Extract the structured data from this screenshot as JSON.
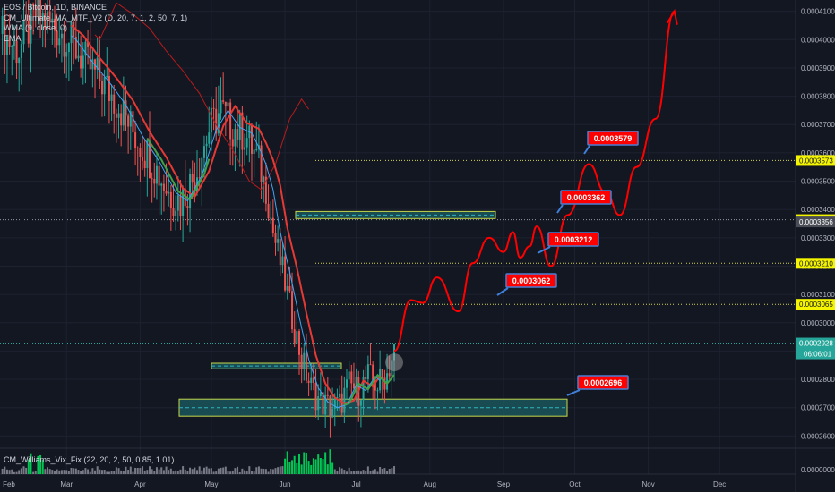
{
  "legend": {
    "title": "EOS / Bitcoin, 1D, BINANCE",
    "ind1": "CM_Ultimate_MA_MTF_V2 (D, 20, 7, 1, 2, 50, 7, 1)",
    "ind2": "WMA (9, close, 0)",
    "ind3": "EMA"
  },
  "oscillator": {
    "label": "CM_Williams_Vix_Fix (22, 20, 2, 50, 0.85, 1.01)"
  },
  "colors": {
    "background": "#131722",
    "up": "#26a69a",
    "down": "#ef5350",
    "projection": "#ff0000",
    "zone": "#1b5e63",
    "zone_line": "#c6d84a",
    "dotted": "#d4d44a",
    "current_price": "#26a69a",
    "badge": "#ff0000"
  },
  "chart_data": {
    "type": "candlestick",
    "title": "EOS / Bitcoin, 1D, BINANCE",
    "x_ticks": [
      "Feb",
      "Mar",
      "Apr",
      "May",
      "Jun",
      "Jul",
      "Aug",
      "Sep",
      "Oct",
      "Nov",
      "Dec"
    ],
    "y_ticks": [
      "0.0004100",
      "0.0004000",
      "0.0003900",
      "0.0003800",
      "0.0003700",
      "0.0003600",
      "0.0003500",
      "0.0003400",
      "0.0003300",
      "0.0003200",
      "0.0003100",
      "0.0003000",
      "0.0002900",
      "0.0002800",
      "0.0002700",
      "0.0002600"
    ],
    "ylim": [
      0.000256,
      0.000414
    ],
    "oscillator_tick": "0.0000000",
    "current_price": {
      "value": 0.0002928,
      "label": "0.0002928",
      "countdown": "06:06:01"
    },
    "axis_markers": [
      {
        "value": 0.0003573,
        "label": "0.0003573"
      },
      {
        "value": 0.0003364,
        "label": "0.0003364"
      },
      {
        "value": 0.0003356,
        "label": "0.0003356"
      },
      {
        "value": 0.000321,
        "label": "0.0003210"
      },
      {
        "value": 0.0003065,
        "label": "0.0003065"
      }
    ],
    "targets": [
      {
        "value": 0.0003579,
        "label": "0.0003579"
      },
      {
        "value": 0.0003362,
        "label": "0.0003362"
      },
      {
        "value": 0.0003212,
        "label": "0.0003212"
      },
      {
        "value": 0.0003062,
        "label": "0.0003062"
      },
      {
        "value": 0.0002696,
        "label": "0.0002696"
      }
    ],
    "zones": [
      {
        "low": 0.000267,
        "high": 0.000273
      },
      {
        "low": 0.0002837,
        "high": 0.0002857
      },
      {
        "low": 0.0003368,
        "high": 0.0003393
      }
    ],
    "price_series": [
      [
        1,
        0.000402
      ],
      [
        8,
        0.000396
      ],
      [
        15,
        0.000409
      ],
      [
        22,
        0.000405
      ],
      [
        29,
        0.0004
      ],
      [
        36,
        0.000392
      ],
      [
        43,
        0.000385
      ],
      [
        50,
        0.000377
      ],
      [
        57,
        0.000366
      ],
      [
        64,
        0.000357
      ],
      [
        71,
        0.000346
      ],
      [
        76,
        0.000343
      ],
      [
        82,
        0.000352
      ],
      [
        88,
        0.000368
      ],
      [
        93,
        0.000375
      ],
      [
        98,
        0.000369
      ],
      [
        103,
        0.000367
      ],
      [
        106,
        0.000362
      ],
      [
        109,
        0.000356
      ],
      [
        112,
        0.000347
      ],
      [
        115,
        0.000332
      ],
      [
        119,
        0.000318
      ],
      [
        123,
        0.000302
      ],
      [
        127,
        0.000287
      ],
      [
        131,
        0.000277
      ],
      [
        135,
        0.000272
      ],
      [
        139,
        0.00027
      ],
      [
        143,
        0.000271
      ],
      [
        147,
        0.000278
      ],
      [
        151,
        0.000276
      ],
      [
        155,
        0.000281
      ],
      [
        159,
        0.000278
      ],
      [
        163,
        0.000282
      ],
      [
        166,
        0.00029
      ]
    ],
    "projection": [
      [
        166,
        0.00029
      ],
      [
        173,
        0.000308
      ],
      [
        178,
        0.000307
      ],
      [
        184,
        0.000316
      ],
      [
        193,
        0.000304
      ],
      [
        199,
        0.000321
      ],
      [
        206,
        0.00033
      ],
      [
        212,
        0.000325
      ],
      [
        216,
        0.000332
      ],
      [
        219,
        0.000323
      ],
      [
        223,
        0.000327
      ],
      [
        226,
        0.000334
      ],
      [
        232,
        0.00032
      ],
      [
        239,
        0.000338
      ],
      [
        248,
        0.000356
      ],
      [
        255,
        0.000346
      ],
      [
        261,
        0.000338
      ],
      [
        268,
        0.000355
      ],
      [
        276,
        0.000372
      ],
      [
        284,
        0.00041
      ]
    ]
  }
}
